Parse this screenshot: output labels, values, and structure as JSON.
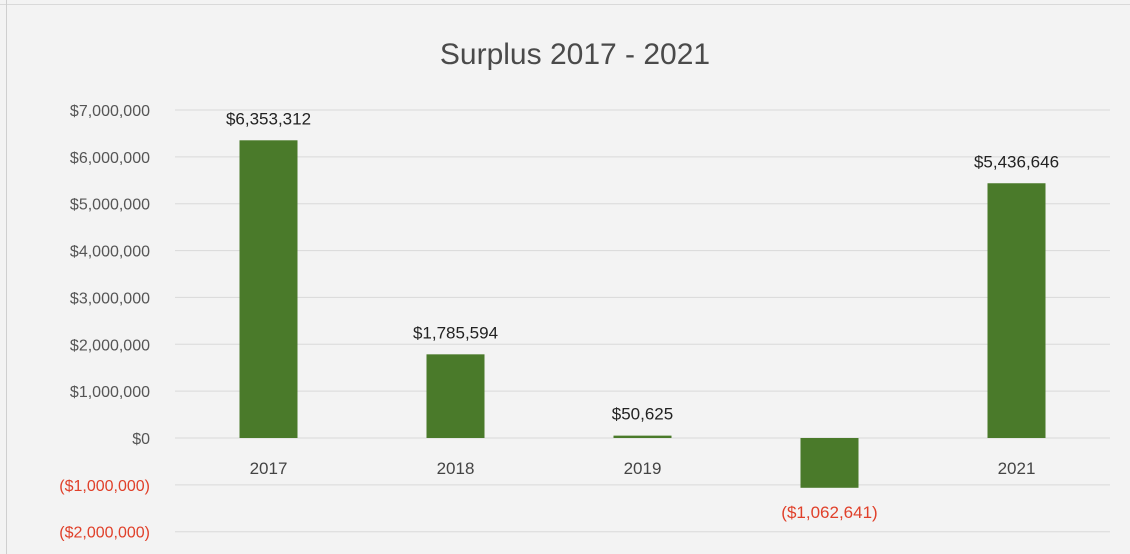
{
  "chart_data": {
    "type": "bar",
    "title": "Surplus 2017 - 2021",
    "xlabel": "",
    "ylabel": "",
    "categories": [
      "2017",
      "2018",
      "2019",
      "",
      "2021"
    ],
    "values": [
      6353312,
      1785594,
      50625,
      -1062641,
      5436646
    ],
    "data_labels": [
      "$6,353,312",
      "$1,785,594",
      "$50,625",
      "($1,062,641)",
      "$5,436,646"
    ],
    "y_ticks": [
      7000000,
      6000000,
      5000000,
      4000000,
      3000000,
      2000000,
      1000000,
      0,
      -1000000,
      -2000000
    ],
    "y_tick_labels": [
      "$7,000,000",
      "$6,000,000",
      "$5,000,000",
      "$4,000,000",
      "$3,000,000",
      "$2,000,000",
      "$1,000,000",
      "$0",
      "($1,000,000)",
      "($2,000,000)"
    ],
    "ylim": [
      -2000000,
      7000000
    ],
    "grid": true,
    "legend": "none",
    "colors": {
      "bar": "#4a7a2a",
      "negative_text": "#e0402a",
      "grid": "#d9d9d9",
      "background": "#f3f3f3"
    }
  }
}
